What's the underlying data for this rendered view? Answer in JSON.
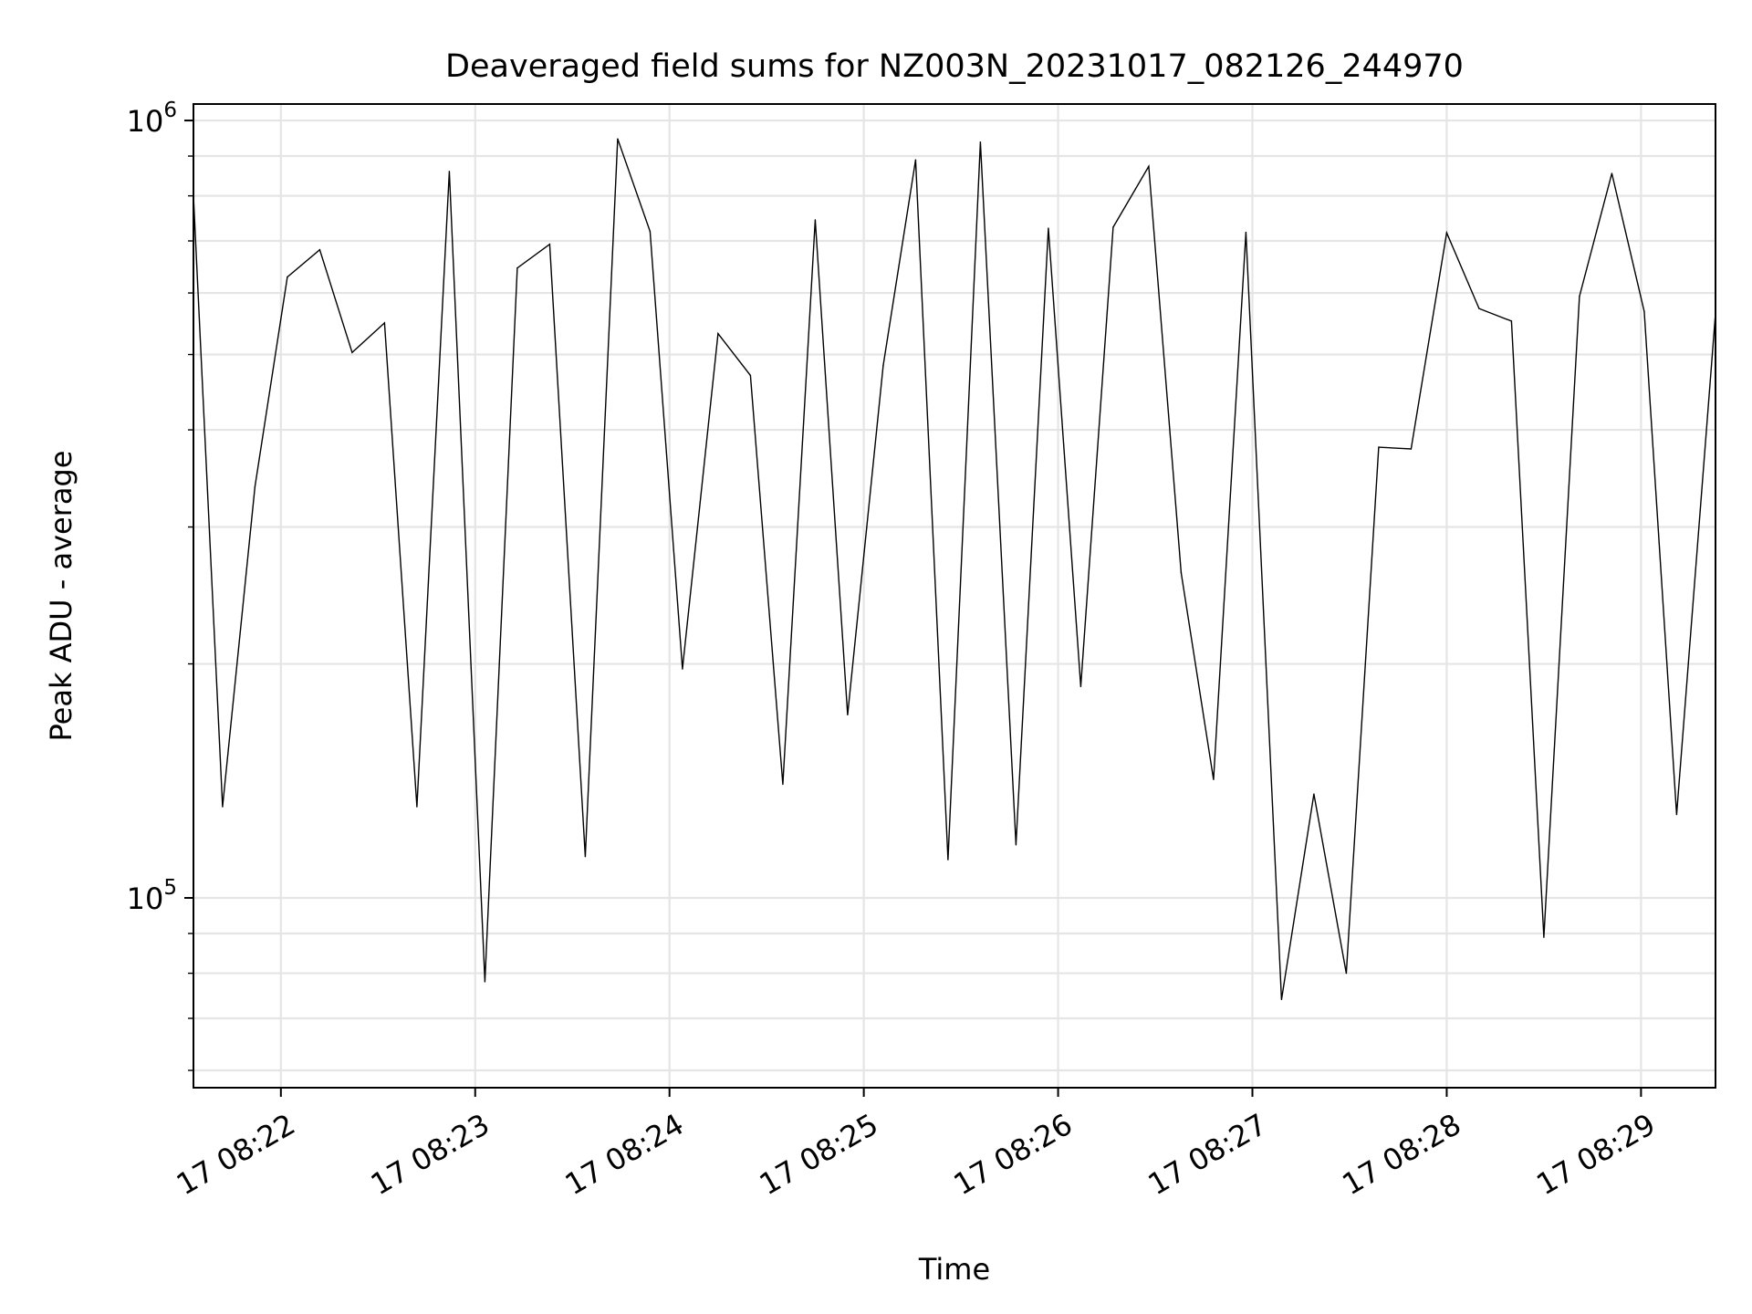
{
  "chart_data": {
    "type": "line",
    "title": "Deaveraged field sums for NZ003N_20231017_082126_244970",
    "xlabel": "Time",
    "ylabel": "Peak ADU - average",
    "yscale": "log",
    "ylim": [
      57000,
      1050000
    ],
    "xlim": [
      "2023-10-17 08:21:33",
      "2023-10-17 08:29:23"
    ],
    "grid": true,
    "x_ticks": [
      {
        "label": "17 08:22",
        "value": "2023-10-17 08:22:00"
      },
      {
        "label": "17 08:23",
        "value": "2023-10-17 08:23:00"
      },
      {
        "label": "17 08:24",
        "value": "2023-10-17 08:24:00"
      },
      {
        "label": "17 08:25",
        "value": "2023-10-17 08:25:00"
      },
      {
        "label": "17 08:26",
        "value": "2023-10-17 08:26:00"
      },
      {
        "label": "17 08:27",
        "value": "2023-10-17 08:27:00"
      },
      {
        "label": "17 08:28",
        "value": "2023-10-17 08:28:00"
      },
      {
        "label": "17 08:29",
        "value": "2023-10-17 08:29:00"
      }
    ],
    "y_ticks": [
      {
        "base": "10",
        "exp": "5",
        "value": 100000
      },
      {
        "base": "10",
        "exp": "6",
        "value": 1000000
      }
    ],
    "series": [
      {
        "color": "#000000",
        "x": [
          "2023-10-17 08:21:33",
          "2023-10-17 08:21:42",
          "2023-10-17 08:21:52",
          "2023-10-17 08:22:02",
          "2023-10-17 08:22:12",
          "2023-10-17 08:22:22",
          "2023-10-17 08:22:32",
          "2023-10-17 08:22:42",
          "2023-10-17 08:22:52",
          "2023-10-17 08:23:03",
          "2023-10-17 08:23:13",
          "2023-10-17 08:23:23",
          "2023-10-17 08:23:34",
          "2023-10-17 08:23:44",
          "2023-10-17 08:23:54",
          "2023-10-17 08:24:04",
          "2023-10-17 08:24:15",
          "2023-10-17 08:24:25",
          "2023-10-17 08:24:35",
          "2023-10-17 08:24:45",
          "2023-10-17 08:24:55",
          "2023-10-17 08:25:06",
          "2023-10-17 08:25:16",
          "2023-10-17 08:25:26",
          "2023-10-17 08:25:36",
          "2023-10-17 08:25:47",
          "2023-10-17 08:25:57",
          "2023-10-17 08:26:07",
          "2023-10-17 08:26:17",
          "2023-10-17 08:26:28",
          "2023-10-17 08:26:38",
          "2023-10-17 08:26:48",
          "2023-10-17 08:26:58",
          "2023-10-17 08:27:09",
          "2023-10-17 08:27:19",
          "2023-10-17 08:27:29",
          "2023-10-17 08:27:39",
          "2023-10-17 08:27:49",
          "2023-10-17 08:28:00",
          "2023-10-17 08:28:10",
          "2023-10-17 08:28:20",
          "2023-10-17 08:28:30",
          "2023-10-17 08:28:41",
          "2023-10-17 08:28:51",
          "2023-10-17 08:29:01",
          "2023-10-17 08:29:11",
          "2023-10-17 08:29:23"
        ],
        "values": [
          800000,
          131000,
          338000,
          629000,
          682000,
          503000,
          549000,
          131000,
          860000,
          78000,
          646000,
          693000,
          113000,
          947000,
          720000,
          197000,
          532000,
          470000,
          140000,
          745000,
          172000,
          484000,
          890000,
          112000,
          938000,
          117000,
          727000,
          187000,
          729000,
          873000,
          262000,
          142000,
          718000,
          74000,
          136000,
          80000,
          380000,
          378000,
          717000,
          573000,
          552000,
          89000,
          594000,
          855000,
          568000,
          128000,
          565000
        ]
      }
    ]
  }
}
